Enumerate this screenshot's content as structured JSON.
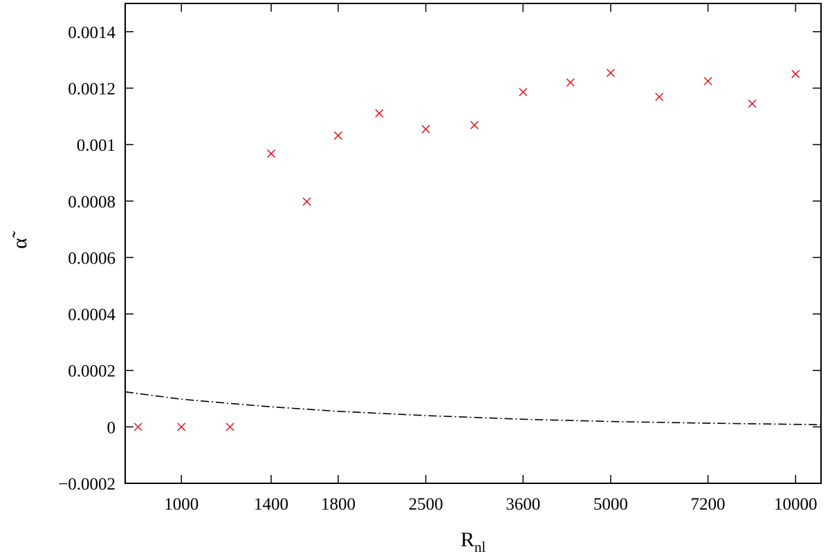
{
  "chart_data": {
    "type": "scatter",
    "title": "",
    "xlabel": {
      "main": "R",
      "sub": "nl"
    },
    "ylabel": "α̃",
    "x_scale": "log",
    "xlim": [
      810,
      11000
    ],
    "ylim": [
      -0.0002,
      0.0015
    ],
    "grid": false,
    "legend": "none",
    "x_ticks": [
      {
        "value": 1000,
        "label": "1000"
      },
      {
        "value": 1400,
        "label": "1400"
      },
      {
        "value": 1800,
        "label": "1800"
      },
      {
        "value": 2500,
        "label": "2500"
      },
      {
        "value": 3600,
        "label": "3600"
      },
      {
        "value": 5000,
        "label": "5000"
      },
      {
        "value": 7200,
        "label": "7200"
      },
      {
        "value": 10000,
        "label": "10000"
      }
    ],
    "y_ticks": [
      {
        "value": -0.0002,
        "label": "−0.0002"
      },
      {
        "value": 0,
        "label": "0"
      },
      {
        "value": 0.0002,
        "label": "0.0002"
      },
      {
        "value": 0.0004,
        "label": "0.0004"
      },
      {
        "value": 0.0006,
        "label": "0.0006"
      },
      {
        "value": 0.0008,
        "label": "0.0008"
      },
      {
        "value": 0.001,
        "label": "0.001"
      },
      {
        "value": 0.0012,
        "label": "0.0012"
      },
      {
        "value": 0.0014,
        "label": "0.0014"
      }
    ],
    "series": [
      {
        "kind": "points",
        "marker": "x",
        "color": "#e8141c",
        "points": [
          {
            "x": 850,
            "y": 0
          },
          {
            "x": 1000,
            "y": 0
          },
          {
            "x": 1200,
            "y": 0
          },
          {
            "x": 1400,
            "y": 0.000968
          },
          {
            "x": 1600,
            "y": 0.000798
          },
          {
            "x": 1800,
            "y": 0.001032
          },
          {
            "x": 2100,
            "y": 0.001111
          },
          {
            "x": 2500,
            "y": 0.001055
          },
          {
            "x": 3000,
            "y": 0.001069
          },
          {
            "x": 3600,
            "y": 0.001186
          },
          {
            "x": 4300,
            "y": 0.00122
          },
          {
            "x": 5000,
            "y": 0.001254
          },
          {
            "x": 6000,
            "y": 0.001169
          },
          {
            "x": 7200,
            "y": 0.001225
          },
          {
            "x": 8500,
            "y": 0.001145
          },
          {
            "x": 10000,
            "y": 0.00125
          }
        ]
      },
      {
        "kind": "curve",
        "style": "dash-dot",
        "color": "#000000",
        "points": [
          {
            "x": 810,
            "y": 0.000124
          },
          {
            "x": 1000,
            "y": 9.8e-05
          },
          {
            "x": 1200,
            "y": 8.3e-05
          },
          {
            "x": 1400,
            "y": 7.1e-05
          },
          {
            "x": 1800,
            "y": 5.5e-05
          },
          {
            "x": 2500,
            "y": 4e-05
          },
          {
            "x": 3600,
            "y": 2.7e-05
          },
          {
            "x": 5000,
            "y": 1.9e-05
          },
          {
            "x": 7200,
            "y": 1.3e-05
          },
          {
            "x": 10000,
            "y": 9e-06
          },
          {
            "x": 11000,
            "y": 8e-06
          }
        ]
      }
    ]
  }
}
